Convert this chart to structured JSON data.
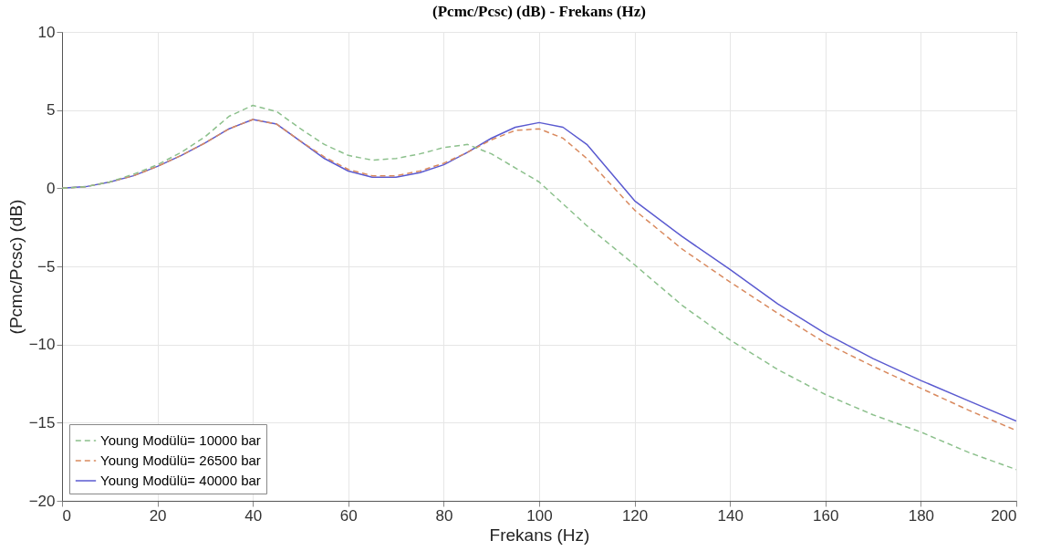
{
  "chart_data": {
    "type": "line",
    "title": "(Pcmc/Pcsc) (dB) - Frekans (Hz)",
    "xlabel": "Frekans (Hz)",
    "ylabel": "(Pcmc/Pcsc) (dB)",
    "xlim": [
      0,
      200
    ],
    "xticks": [
      0,
      20,
      40,
      60,
      80,
      100,
      120,
      140,
      160,
      180,
      200
    ],
    "ylim": [
      -20,
      10
    ],
    "yticks": [
      -20,
      -15,
      -10,
      -5,
      0,
      5,
      10
    ],
    "grid": true,
    "legend": "bottom left",
    "marker": "none",
    "x": [
      0,
      5,
      10,
      15,
      20,
      25,
      30,
      35,
      40,
      45,
      50,
      55,
      60,
      65,
      70,
      75,
      80,
      85,
      90,
      95,
      100,
      105,
      110,
      120,
      130,
      140,
      150,
      160,
      170,
      180,
      190,
      200
    ],
    "series": [
      {
        "name": "Young Modülü= 10000 bar",
        "color": "#8cc08c",
        "line_style": "dashed",
        "values": [
          0,
          0.1,
          0.4,
          0.9,
          1.5,
          2.3,
          3.3,
          4.6,
          5.3,
          4.9,
          3.8,
          2.8,
          2.1,
          1.8,
          1.9,
          2.2,
          2.6,
          2.8,
          2.2,
          1.3,
          0.4,
          -1.0,
          -2.4,
          -4.9,
          -7.5,
          -9.7,
          -11.6,
          -13.2,
          -14.5,
          -15.6,
          -16.9,
          -18.0
        ]
      },
      {
        "name": "Young Modülü= 26500 bar",
        "color": "#d98a5f",
        "line_style": "dashed",
        "values": [
          0,
          0.1,
          0.4,
          0.8,
          1.4,
          2.1,
          2.9,
          3.8,
          4.4,
          4.1,
          3.0,
          2.0,
          1.2,
          0.8,
          0.8,
          1.1,
          1.6,
          2.3,
          3.1,
          3.7,
          3.8,
          3.2,
          1.9,
          -1.4,
          -3.9,
          -6.0,
          -8.0,
          -9.9,
          -11.4,
          -12.8,
          -14.2,
          -15.5
        ]
      },
      {
        "name": "Young Modülü= 40000 bar",
        "color": "#5a5ad0",
        "line_style": "solid",
        "values": [
          0,
          0.1,
          0.4,
          0.8,
          1.4,
          2.1,
          2.9,
          3.8,
          4.4,
          4.1,
          3.0,
          1.9,
          1.1,
          0.7,
          0.7,
          1.0,
          1.5,
          2.3,
          3.2,
          3.9,
          4.2,
          3.9,
          2.8,
          -0.8,
          -3.1,
          -5.2,
          -7.4,
          -9.3,
          -10.9,
          -12.3,
          -13.6,
          -14.9
        ]
      }
    ]
  }
}
